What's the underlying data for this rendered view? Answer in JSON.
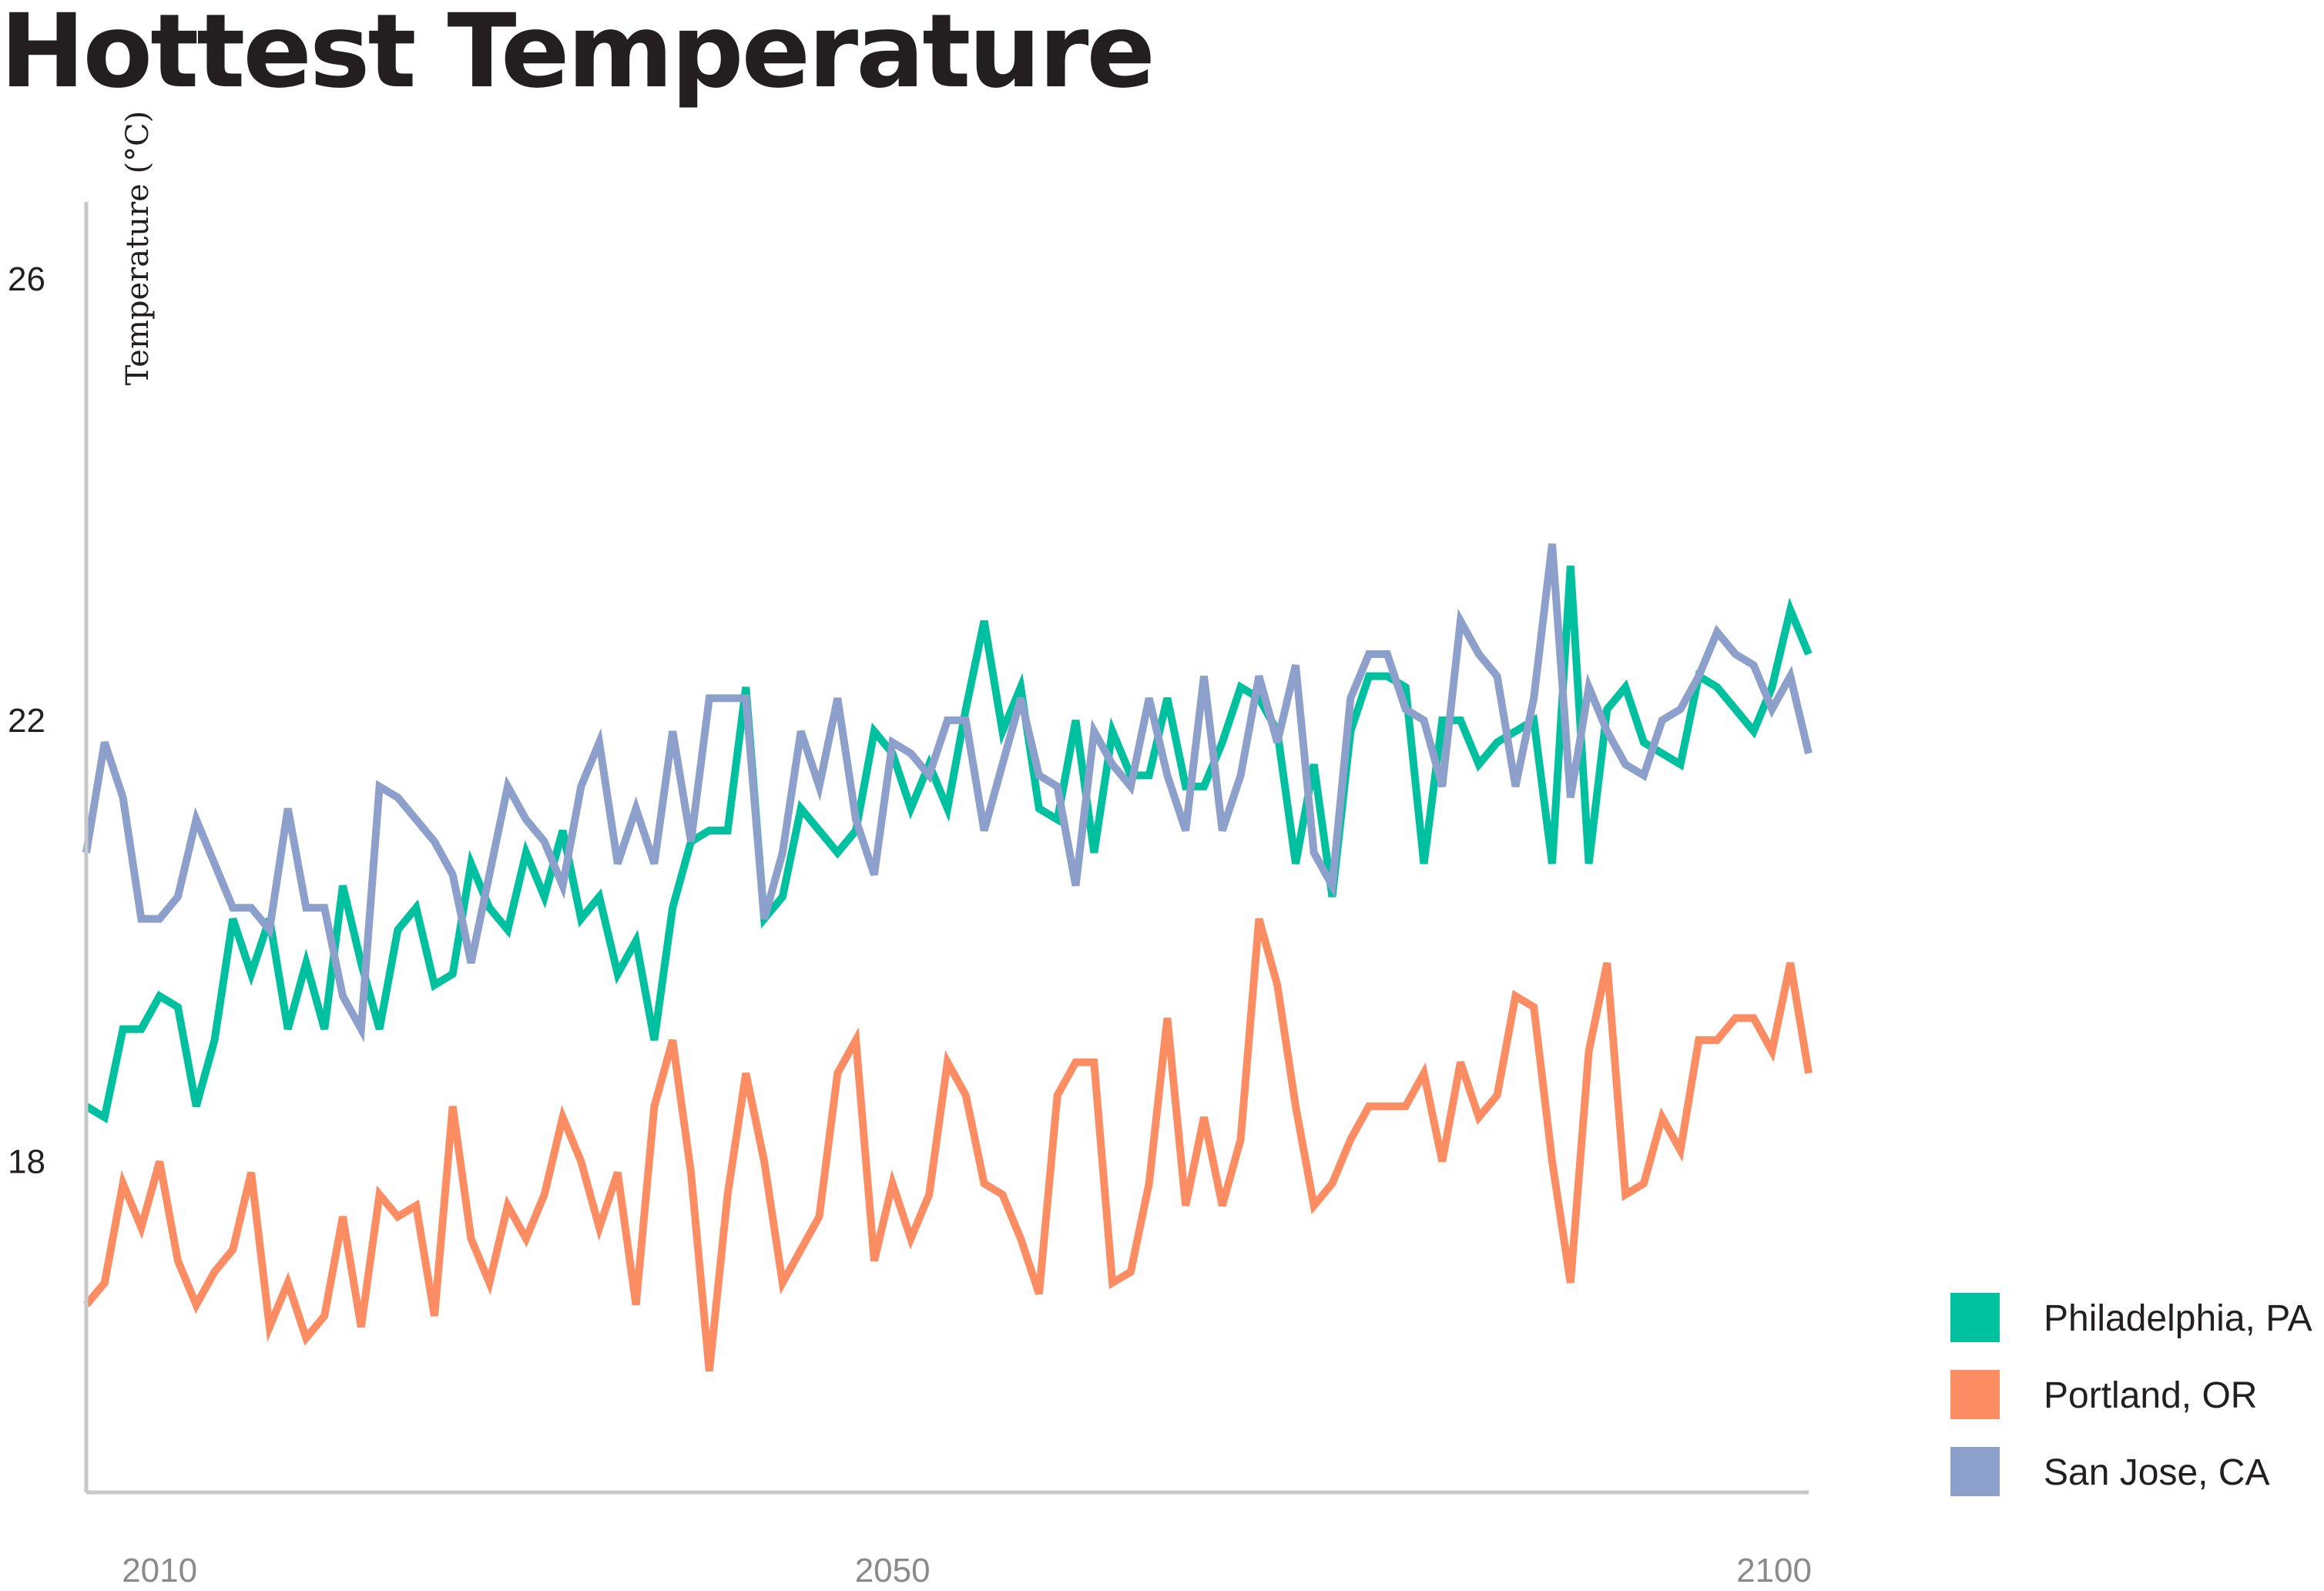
{
  "chart_data": {
    "type": "line",
    "title": "Hottest Temperature",
    "ylabel": "Temperature (°C)",
    "xlabel": "",
    "x": [
      2006,
      2007,
      2008,
      2009,
      2010,
      2011,
      2012,
      2013,
      2014,
      2015,
      2016,
      2017,
      2018,
      2019,
      2020,
      2021,
      2022,
      2023,
      2024,
      2025,
      2026,
      2027,
      2028,
      2029,
      2030,
      2031,
      2032,
      2033,
      2034,
      2035,
      2036,
      2037,
      2038,
      2039,
      2040,
      2041,
      2042,
      2043,
      2044,
      2045,
      2046,
      2047,
      2048,
      2049,
      2050,
      2051,
      2052,
      2053,
      2054,
      2055,
      2056,
      2057,
      2058,
      2059,
      2060,
      2061,
      2062,
      2063,
      2064,
      2065,
      2066,
      2067,
      2068,
      2069,
      2070,
      2071,
      2072,
      2073,
      2074,
      2075,
      2076,
      2077,
      2078,
      2079,
      2080,
      2081,
      2082,
      2083,
      2084,
      2085,
      2086,
      2087,
      2088,
      2089,
      2090,
      2091,
      2092,
      2093,
      2094,
      2095,
      2096,
      2097,
      2098,
      2099,
      2100
    ],
    "xlim": [
      2006,
      2100
    ],
    "ylim": [
      15.0,
      26.7
    ],
    "yticks": [
      "26",
      "22",
      "18"
    ],
    "ytick_values": [
      26,
      22,
      18
    ],
    "xticks": [
      "2010",
      "2050",
      "2100"
    ],
    "xtick_values": [
      2010,
      2050,
      2100
    ],
    "grid": false,
    "legend_position": "bottom-right",
    "series": [
      {
        "name": "Philadelphia, PA",
        "color": "#00c19f",
        "values": [
          18.5,
          18.4,
          19.2,
          19.2,
          19.5,
          19.4,
          18.5,
          19.1,
          20.2,
          19.7,
          20.2,
          19.2,
          19.8,
          19.2,
          20.5,
          19.8,
          19.2,
          20.1,
          20.3,
          19.6,
          19.7,
          20.7,
          20.3,
          20.1,
          20.8,
          20.4,
          21.0,
          20.2,
          20.4,
          19.7,
          20.0,
          19.1,
          20.3,
          20.9,
          21.0,
          21.0,
          22.3,
          20.2,
          20.4,
          21.2,
          21.0,
          20.8,
          21.0,
          21.9,
          21.7,
          21.2,
          21.6,
          21.2,
          22.1,
          22.9,
          21.9,
          22.3,
          21.2,
          21.1,
          22.0,
          20.8,
          21.9,
          21.5,
          21.5,
          22.2,
          21.4,
          21.4,
          21.8,
          22.3,
          22.2,
          21.9,
          20.7,
          21.6,
          20.4,
          21.9,
          22.4,
          22.4,
          22.3,
          20.7,
          22.0,
          22.0,
          21.6,
          21.8,
          21.9,
          22.0,
          20.7,
          23.4,
          20.7,
          22.1,
          22.3,
          21.8,
          21.7,
          21.6,
          22.4,
          22.3,
          22.1,
          21.9,
          22.3,
          23.0,
          22.6
        ]
      },
      {
        "name": "Portland, OR",
        "color": "#fc8d62",
        "values": [
          16.7,
          16.9,
          17.8,
          17.4,
          18.0,
          17.1,
          16.7,
          17.0,
          17.2,
          17.9,
          16.5,
          16.9,
          16.4,
          16.6,
          17.5,
          16.5,
          17.7,
          17.5,
          17.6,
          16.6,
          18.5,
          17.3,
          16.9,
          17.6,
          17.3,
          17.7,
          18.4,
          18.0,
          17.4,
          17.9,
          16.7,
          18.5,
          19.1,
          17.9,
          16.1,
          17.7,
          18.8,
          18.0,
          16.9,
          17.2,
          17.5,
          18.8,
          19.1,
          17.1,
          17.8,
          17.3,
          17.7,
          18.9,
          18.6,
          17.8,
          17.7,
          17.3,
          16.8,
          18.6,
          18.9,
          18.9,
          16.9,
          17.0,
          17.8,
          19.3,
          17.6,
          18.4,
          17.6,
          18.2,
          20.2,
          19.6,
          18.5,
          17.6,
          17.8,
          18.2,
          18.5,
          18.5,
          18.5,
          18.8,
          18.0,
          18.9,
          18.4,
          18.6,
          19.5,
          19.4,
          18.0,
          16.9,
          19.0,
          19.8,
          17.7,
          17.8,
          18.4,
          18.1,
          19.1,
          19.1,
          19.3,
          19.3,
          19.0,
          19.8,
          18.8
        ]
      },
      {
        "name": "San Jose, CA",
        "color": "#8da0cb",
        "values": [
          20.8,
          21.8,
          21.3,
          20.2,
          20.2,
          20.4,
          21.1,
          20.7,
          20.3,
          20.3,
          20.1,
          21.2,
          20.3,
          20.3,
          19.5,
          19.2,
          21.4,
          21.3,
          21.1,
          20.9,
          20.6,
          19.8,
          20.6,
          21.4,
          21.1,
          20.9,
          20.5,
          21.4,
          21.8,
          20.7,
          21.2,
          20.7,
          21.9,
          20.9,
          22.2,
          22.2,
          22.2,
          20.2,
          20.8,
          21.9,
          21.4,
          22.2,
          21.1,
          20.6,
          21.8,
          21.7,
          21.5,
          22.0,
          22.0,
          21.0,
          21.6,
          22.2,
          21.5,
          21.4,
          20.5,
          21.9,
          21.6,
          21.4,
          22.2,
          21.5,
          21.0,
          22.4,
          21.0,
          21.5,
          22.4,
          21.8,
          22.5,
          20.8,
          20.5,
          22.2,
          22.6,
          22.6,
          22.1,
          22.0,
          21.4,
          22.9,
          22.6,
          22.4,
          21.4,
          22.2,
          23.6,
          21.3,
          22.3,
          21.9,
          21.6,
          21.5,
          22.0,
          22.1,
          22.4,
          22.8,
          22.6,
          22.5,
          22.1,
          22.4,
          21.7
        ]
      }
    ]
  }
}
